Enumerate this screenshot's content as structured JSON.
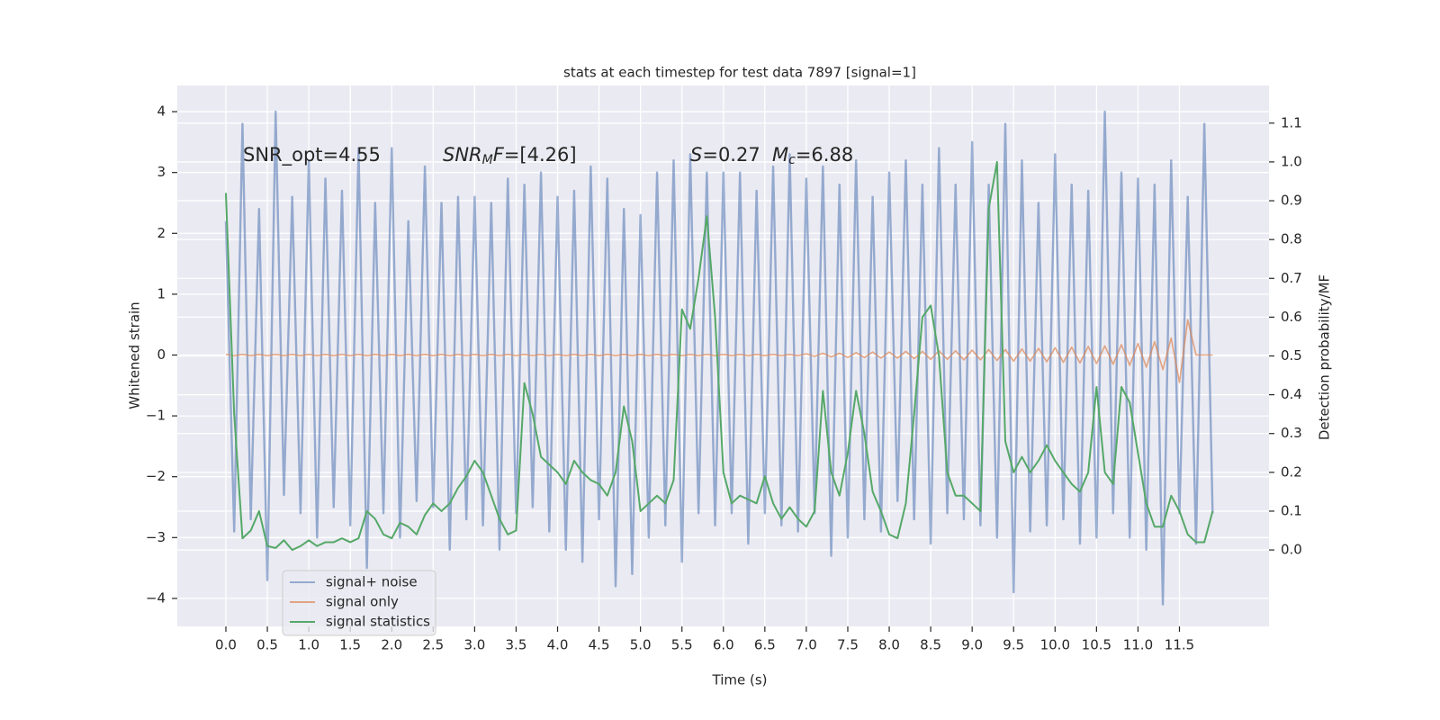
{
  "chart_data": {
    "type": "line",
    "title": "stats at each timestep for test data 7897 [signal=1]",
    "x_label": "Time (s)",
    "y_label": "Whitened strain",
    "y2_label": "Detection probability/MF",
    "grid": true,
    "legend": "lower left",
    "annotations": [
      {
        "parts": [
          {
            "text": "SNR_opt=4.55",
            "style": "normal"
          }
        ]
      },
      {
        "parts": [
          {
            "text": "SNR",
            "style": "italic"
          },
          {
            "text": "M",
            "style": "italic-sub"
          },
          {
            "text": "F",
            "style": "italic"
          },
          {
            "text": "=[4.26]",
            "style": "normal"
          }
        ]
      },
      {
        "parts": [
          {
            "text": "S",
            "style": "italic"
          },
          {
            "text": "=0.27",
            "style": "normal"
          }
        ]
      },
      {
        "parts": [
          {
            "text": "M",
            "style": "italic"
          },
          {
            "text": "c",
            "style": "italic-sub"
          },
          {
            "text": "=6.88",
            "style": "normal"
          }
        ]
      }
    ],
    "xlim": [
      -0.586,
      12.58
    ],
    "ylim": [
      -4.46,
      4.43
    ],
    "y2lim": [
      -0.197,
      1.197
    ],
    "xticks": [
      {
        "value": 0,
        "label": "0.0"
      },
      {
        "value": 0.5,
        "label": "0.5"
      },
      {
        "value": 1,
        "label": "1.0"
      },
      {
        "value": 1.5,
        "label": "1.5"
      },
      {
        "value": 2,
        "label": "2.0"
      },
      {
        "value": 2.5,
        "label": "2.5"
      },
      {
        "value": 3,
        "label": "3.0"
      },
      {
        "value": 3.5,
        "label": "3.5"
      },
      {
        "value": 4,
        "label": "4.0"
      },
      {
        "value": 4.5,
        "label": "4.5"
      },
      {
        "value": 5,
        "label": "5.0"
      },
      {
        "value": 5.5,
        "label": "5.5"
      },
      {
        "value": 6,
        "label": "6.0"
      },
      {
        "value": 6.5,
        "label": "6.5"
      },
      {
        "value": 7,
        "label": "7.0"
      },
      {
        "value": 7.5,
        "label": "7.5"
      },
      {
        "value": 8,
        "label": "8.0"
      },
      {
        "value": 8.5,
        "label": "8.5"
      },
      {
        "value": 9,
        "label": "9.0"
      },
      {
        "value": 9.5,
        "label": "9.5"
      },
      {
        "value": 10,
        "label": "10.0"
      },
      {
        "value": 10.5,
        "label": "10.5"
      },
      {
        "value": 11,
        "label": "11.0"
      },
      {
        "value": 11.5,
        "label": "11.5"
      }
    ],
    "yticks": [
      {
        "value": -4,
        "label": "−4"
      },
      {
        "value": -3,
        "label": "−3"
      },
      {
        "value": -2,
        "label": "−2"
      },
      {
        "value": -1,
        "label": "−1"
      },
      0,
      1,
      2,
      3,
      4
    ],
    "y2ticks": [
      {
        "value": 0,
        "label": "0.0"
      },
      {
        "value": 0.1,
        "label": "0.1"
      },
      {
        "value": 0.2,
        "label": "0.2"
      },
      {
        "value": 0.3,
        "label": "0.3"
      },
      {
        "value": 0.4,
        "label": "0.4"
      },
      {
        "value": 0.5,
        "label": "0.5"
      },
      {
        "value": 0.6,
        "label": "0.6"
      },
      {
        "value": 0.7,
        "label": "0.7"
      },
      {
        "value": 0.8,
        "label": "0.8"
      },
      {
        "value": 0.9,
        "label": "0.9"
      },
      {
        "value": 1,
        "label": "1.0"
      },
      {
        "value": 1.1,
        "label": "1.1"
      }
    ],
    "x": [
      0,
      0.1,
      0.2,
      0.3,
      0.4,
      0.5,
      0.6,
      0.7,
      0.8,
      0.9,
      1,
      1.1,
      1.2,
      1.3,
      1.4,
      1.5,
      1.6,
      1.7,
      1.8,
      1.9,
      2,
      2.1,
      2.2,
      2.3,
      2.4,
      2.5,
      2.6,
      2.7,
      2.8,
      2.9,
      3,
      3.1,
      3.2,
      3.3,
      3.4,
      3.5,
      3.6,
      3.7,
      3.8,
      3.9,
      4,
      4.1,
      4.2,
      4.3,
      4.4,
      4.5,
      4.6,
      4.7,
      4.8,
      4.9,
      5,
      5.1,
      5.2,
      5.3,
      5.4,
      5.5,
      5.6,
      5.7,
      5.8,
      5.9,
      6,
      6.1,
      6.2,
      6.3,
      6.4,
      6.5,
      6.6,
      6.7,
      6.8,
      6.9,
      7,
      7.1,
      7.2,
      7.3,
      7.4,
      7.5,
      7.6,
      7.7,
      7.8,
      7.9,
      8,
      8.1,
      8.2,
      8.3,
      8.4,
      8.5,
      8.6,
      8.7,
      8.8,
      8.9,
      9,
      9.1,
      9.2,
      9.3,
      9.4,
      9.5,
      9.6,
      9.7,
      9.8,
      9.9,
      10,
      10.1,
      10.2,
      10.3,
      10.4,
      10.5,
      10.6,
      10.7,
      10.8,
      10.9,
      11,
      11.1,
      11.2,
      11.3,
      11.4,
      11.5,
      11.6,
      11.7,
      11.8,
      11.9
    ],
    "series": [
      {
        "name": "signal+ noise",
        "color": "#4c72b0",
        "axis": "y",
        "values": [
          2.2,
          -2.9,
          3.8,
          -2.7,
          2.4,
          -3.7,
          4.0,
          -2.3,
          2.6,
          -2.6,
          3.2,
          -3.0,
          2.9,
          -2.5,
          2.7,
          -2.8,
          3.4,
          -3.5,
          2.5,
          -2.6,
          3.4,
          -3.0,
          2.2,
          -2.4,
          3.1,
          -2.5,
          2.5,
          -3.2,
          2.6,
          -2.7,
          2.6,
          -2.8,
          2.5,
          -3.2,
          2.9,
          -2.6,
          2.8,
          -2.5,
          3.0,
          -2.9,
          2.6,
          -3.2,
          2.7,
          -3.4,
          3.1,
          -2.7,
          2.9,
          -3.8,
          2.4,
          -3.6,
          2.3,
          -3.0,
          3.0,
          -2.8,
          3.2,
          -3.4,
          3.3,
          -2.6,
          3.0,
          -2.8,
          3.0,
          -2.6,
          3.0,
          -3.1,
          2.7,
          -2.6,
          3.1,
          -2.8,
          3.3,
          -2.9,
          2.9,
          -2.6,
          3.1,
          -3.3,
          2.8,
          -3.0,
          3.2,
          -2.7,
          2.6,
          -2.9,
          3.0,
          -2.4,
          3.2,
          -2.7,
          2.8,
          -3.1,
          3.4,
          -2.6,
          2.8,
          -2.7,
          3.5,
          -2.8,
          2.8,
          -3.0,
          3.8,
          -3.9,
          3.2,
          -2.9,
          2.5,
          -2.8,
          3.3,
          -2.7,
          2.8,
          -3.1,
          2.7,
          -3.0,
          4.0,
          -2.6,
          3.0,
          -3.0,
          2.9,
          -3.2,
          2.8,
          -4.1,
          3.2,
          -2.6,
          2.6,
          -3.1,
          3.8,
          -2.6
        ]
      },
      {
        "name": "signal only",
        "color": "#dd8452",
        "axis": "y",
        "values": [
          0.01,
          -0.01,
          0.01,
          -0.01,
          0.01,
          -0.01,
          0.01,
          -0.01,
          0.01,
          -0.01,
          0.01,
          -0.01,
          0.01,
          -0.01,
          0.01,
          -0.01,
          0.01,
          -0.01,
          0.01,
          -0.01,
          0.01,
          -0.01,
          0.01,
          -0.01,
          0.01,
          -0.01,
          0.01,
          -0.01,
          0.01,
          -0.01,
          0.01,
          -0.01,
          0.01,
          -0.01,
          0.01,
          -0.01,
          0.01,
          -0.01,
          0.01,
          -0.01,
          0.01,
          -0.01,
          0.01,
          -0.01,
          0.01,
          -0.01,
          0.01,
          -0.01,
          0.01,
          -0.01,
          0.01,
          -0.01,
          0.01,
          -0.01,
          0.01,
          -0.01,
          0.01,
          -0.01,
          0.01,
          -0.01,
          0.01,
          -0.01,
          0.01,
          -0.01,
          0.01,
          -0.01,
          0.01,
          -0.01,
          0.01,
          -0.01,
          0.02,
          -0.02,
          0.03,
          -0.03,
          0.03,
          -0.04,
          0.04,
          -0.04,
          0.05,
          -0.05,
          0.05,
          -0.05,
          0.06,
          -0.06,
          0.06,
          -0.07,
          0.07,
          -0.07,
          0.07,
          -0.08,
          0.08,
          -0.08,
          0.09,
          -0.09,
          0.09,
          -0.1,
          0.1,
          -0.1,
          0.11,
          -0.11,
          0.12,
          -0.12,
          0.13,
          -0.13,
          0.14,
          -0.14,
          0.15,
          -0.15,
          0.17,
          -0.17,
          0.19,
          -0.2,
          0.22,
          -0.24,
          0.28,
          -0.45,
          0.58,
          0,
          0,
          0
        ]
      },
      {
        "name": "signal statistics",
        "color": "#55a868",
        "axis": "y2",
        "values": [
          0.92,
          0.35,
          0.03,
          0.05,
          0.1,
          0.01,
          0.005,
          0.025,
          0,
          0.01,
          0.025,
          0.01,
          0.02,
          0.02,
          0.03,
          0.02,
          0.03,
          0.1,
          0.08,
          0.04,
          0.03,
          0.07,
          0.06,
          0.04,
          0.09,
          0.12,
          0.1,
          0.12,
          0.16,
          0.19,
          0.23,
          0.2,
          0.14,
          0.08,
          0.04,
          0.05,
          0.43,
          0.35,
          0.24,
          0.22,
          0.2,
          0.17,
          0.23,
          0.2,
          0.18,
          0.17,
          0.14,
          0.2,
          0.37,
          0.28,
          0.1,
          0.12,
          0.14,
          0.12,
          0.18,
          0.62,
          0.57,
          0.7,
          0.86,
          0.6,
          0.2,
          0.12,
          0.14,
          0.13,
          0.12,
          0.19,
          0.12,
          0.08,
          0.11,
          0.08,
          0.06,
          0.1,
          0.41,
          0.2,
          0.14,
          0.25,
          0.41,
          0.3,
          0.15,
          0.1,
          0.04,
          0.03,
          0.12,
          0.35,
          0.6,
          0.63,
          0.5,
          0.2,
          0.14,
          0.14,
          0.12,
          0.1,
          0.88,
          1.0,
          0.28,
          0.2,
          0.24,
          0.2,
          0.23,
          0.27,
          0.23,
          0.2,
          0.17,
          0.15,
          0.2,
          0.42,
          0.2,
          0.17,
          0.42,
          0.38,
          0.25,
          0.12,
          0.06,
          0.06,
          0.14,
          0.1,
          0.04,
          0.02,
          0.02,
          0.1
        ]
      }
    ]
  }
}
